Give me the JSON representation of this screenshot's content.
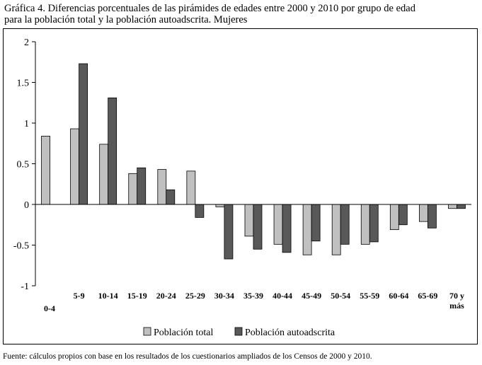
{
  "header": {
    "title_line1": "Gráfica 4.  Diferencias porcentuales de las pirámides de edades entre 2000 y 2010 por grupo de edad",
    "title_line2": "para la población total y la población autoadscrita. Mujeres"
  },
  "footer": {
    "source": "Fuente: cálculos propios con base en los resultados de los cuestionarios ampliados de los Censos de 2000 y 2010."
  },
  "colors": {
    "total": "#c0c0c0",
    "autoadscrita": "#595959",
    "axis": "#000000"
  },
  "chart_data": {
    "type": "bar",
    "categories": [
      "0-4",
      "5-9",
      "10-14",
      "15-19",
      "20-24",
      "25-29",
      "30-34",
      "35-39",
      "40-44",
      "45-49",
      "50-54",
      "55-59",
      "60-64",
      "65-69",
      "70 y más"
    ],
    "category_label_lines": [
      [
        "0-4"
      ],
      [
        "5-9"
      ],
      [
        "10-14"
      ],
      [
        "15-19"
      ],
      [
        "20-24"
      ],
      [
        "25-29"
      ],
      [
        "30-34"
      ],
      [
        "35-39"
      ],
      [
        "40-44"
      ],
      [
        "45-49"
      ],
      [
        "50-54"
      ],
      [
        "55-59"
      ],
      [
        "60-64"
      ],
      [
        "65-69"
      ],
      [
        "70 y",
        "más"
      ]
    ],
    "series": [
      {
        "name": "Población total",
        "values": [
          0.84,
          0.93,
          0.74,
          0.38,
          0.43,
          0.41,
          -0.03,
          -0.39,
          -0.49,
          -0.62,
          -0.62,
          -0.49,
          -0.31,
          -0.21,
          -0.05
        ]
      },
      {
        "name": "Población autoadscrita",
        "values": [
          null,
          1.73,
          1.31,
          0.45,
          0.18,
          -0.16,
          -0.67,
          -0.55,
          -0.59,
          -0.45,
          -0.49,
          -0.46,
          -0.25,
          -0.29,
          -0.05
        ]
      }
    ],
    "yticks": [
      2,
      1.5,
      1,
      0.5,
      0,
      -0.5,
      -1
    ],
    "ytick_labels": [
      "2",
      "1.5",
      "1",
      "0.5",
      "0",
      "-0.5",
      "-1"
    ],
    "ylim": [
      -1,
      2
    ],
    "xlabel": "",
    "ylabel": "",
    "legend_position": "bottom",
    "grid": false
  }
}
